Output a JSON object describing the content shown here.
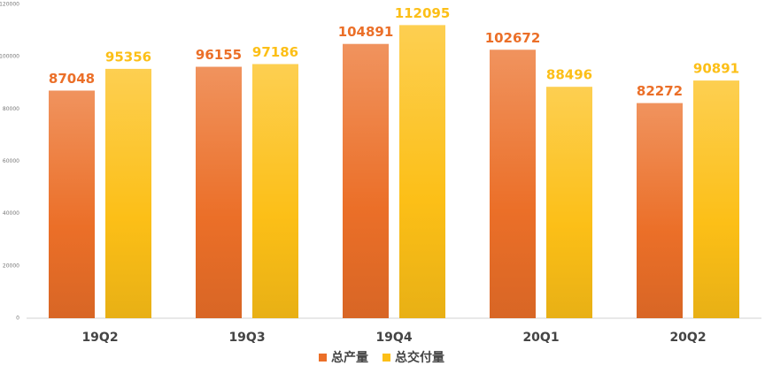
{
  "chart_data": {
    "type": "bar",
    "categories": [
      "19Q2",
      "19Q3",
      "19Q4",
      "20Q1",
      "20Q2"
    ],
    "series": [
      {
        "name": "总产量",
        "color": "#eb6f28",
        "values": [
          87048,
          96155,
          104891,
          102672,
          82272
        ]
      },
      {
        "name": "总交付量",
        "color": "#fcbf17",
        "values": [
          95356,
          97186,
          112095,
          88496,
          90891
        ]
      }
    ],
    "ylim": [
      0,
      120000
    ],
    "yticks": [
      0,
      20000,
      40000,
      60000,
      80000,
      100000,
      120000
    ],
    "grid": false,
    "legend": "bottom"
  }
}
